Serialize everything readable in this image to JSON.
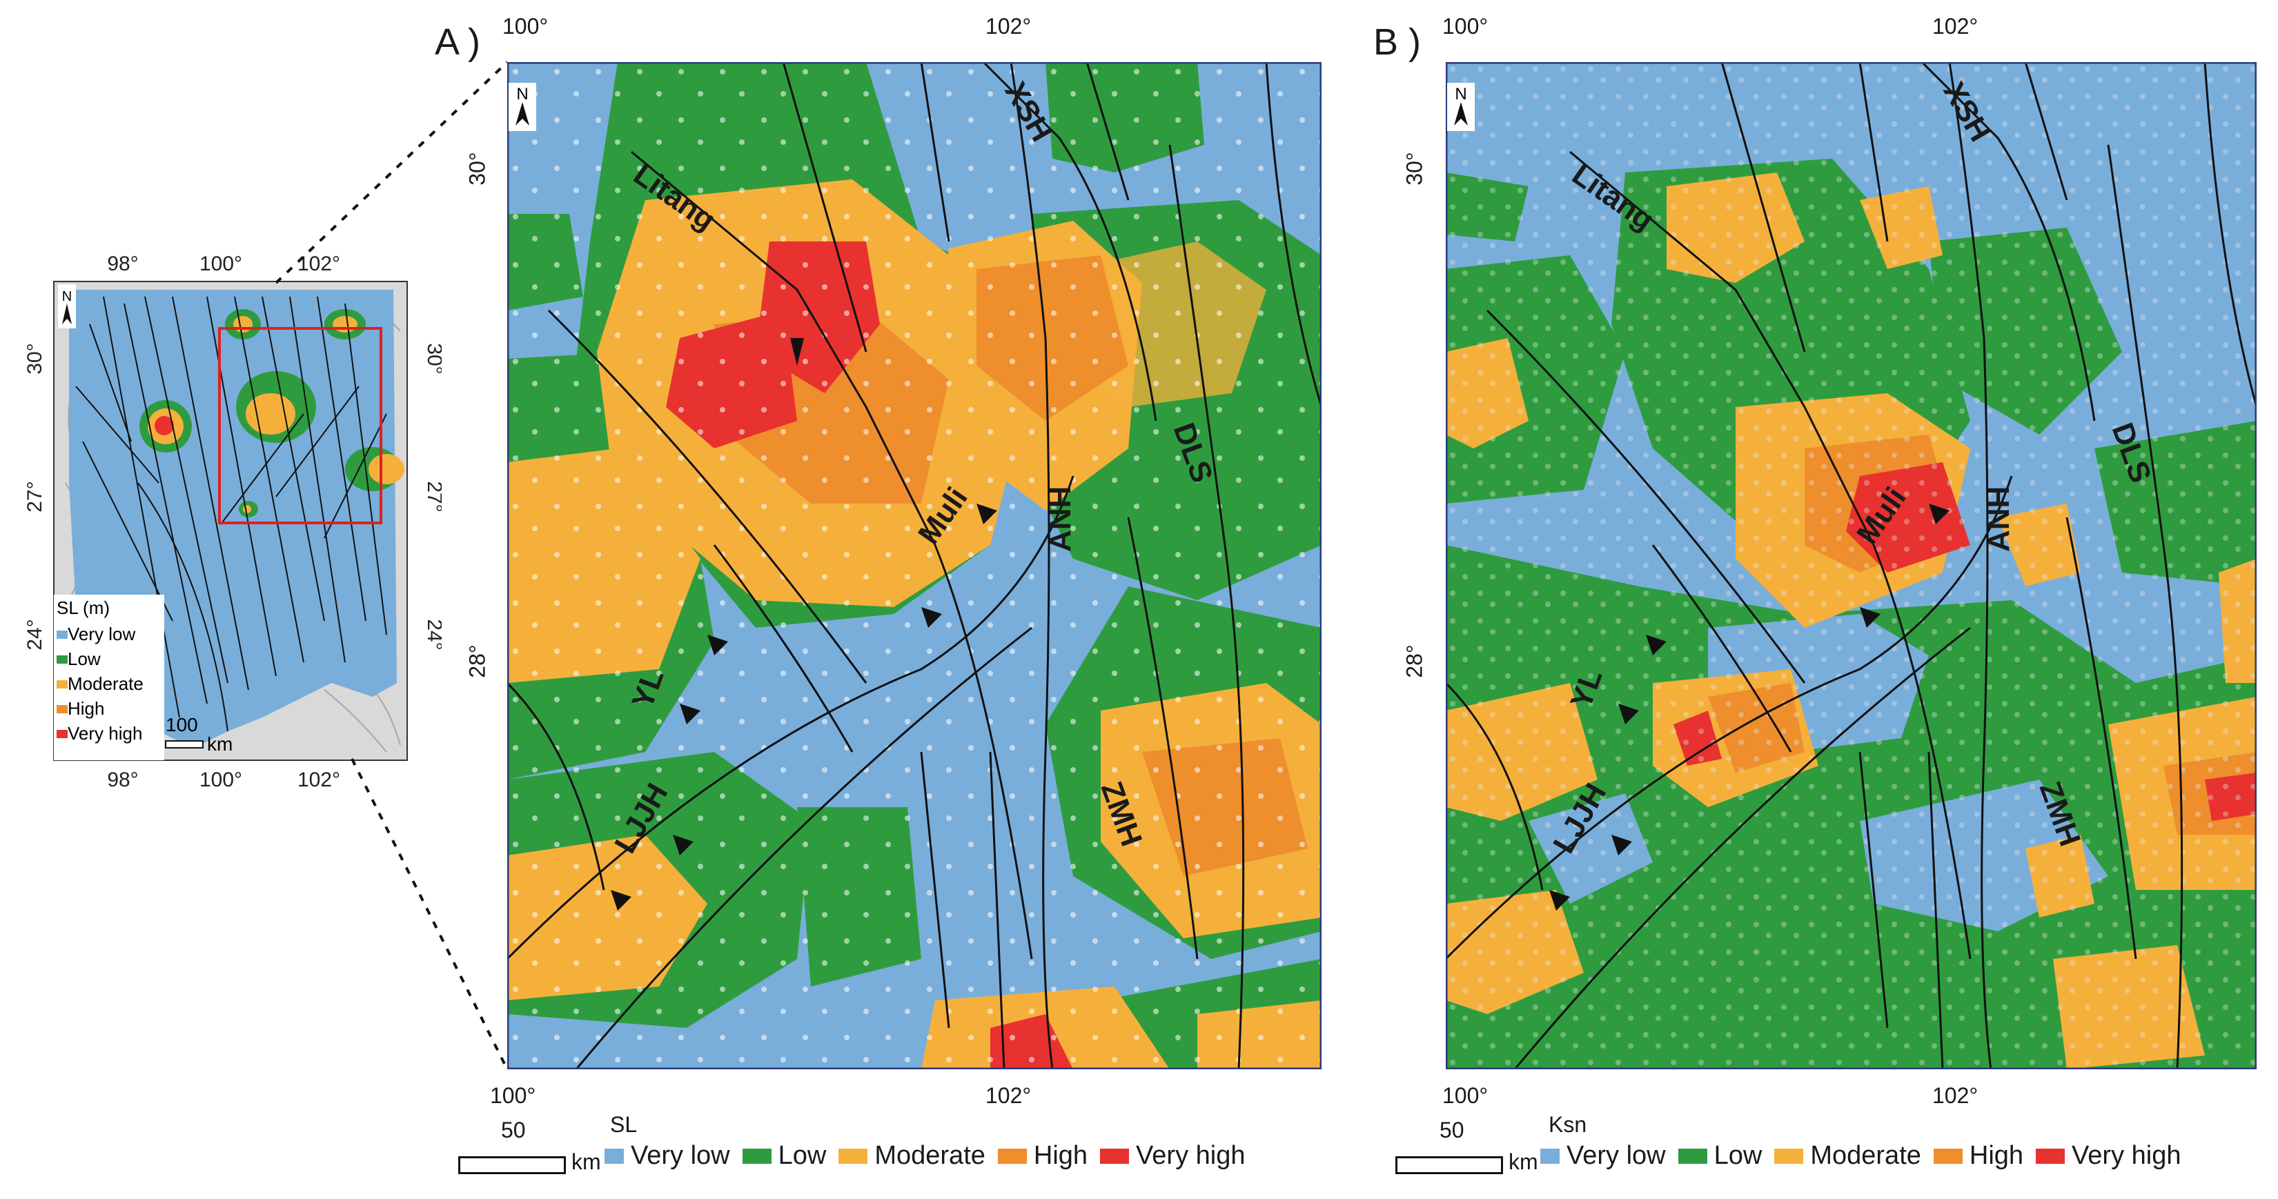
{
  "inset": {
    "top_ticks": [
      "98°",
      "100°",
      "102°"
    ],
    "bottom_ticks": [
      "98°",
      "100°",
      "102°"
    ],
    "left_ticks": [
      "30°",
      "27°",
      "24°"
    ],
    "right_ticks": [
      "30°",
      "27°",
      "24°"
    ],
    "north": "N",
    "legend_title": "SL (m)",
    "legend_items": [
      "Very low",
      "Low",
      "Moderate",
      "High",
      "Very high"
    ],
    "scale_value": "100",
    "scale_unit": "km"
  },
  "panel_a": {
    "letter": "A )",
    "top_ticks": [
      "100°",
      "102°"
    ],
    "bottom_ticks": [
      "100°",
      "102°"
    ],
    "left_ticks": [
      "30°",
      "28°"
    ],
    "north": "N",
    "faults": [
      "XSH",
      "Litang",
      "DLS",
      "ANH",
      "Muli",
      "YL",
      "LJJH",
      "ZMH"
    ],
    "scale_value": "50",
    "scale_unit": "km",
    "legend_title": "SL",
    "legend_items": [
      "Very low",
      "Low",
      "Moderate",
      "High",
      "Very high"
    ]
  },
  "panel_b": {
    "letter": "B )",
    "top_ticks": [
      "100°",
      "102°"
    ],
    "bottom_ticks": [
      "100°",
      "102°"
    ],
    "left_ticks": [
      "30°",
      "28°"
    ],
    "north": "N",
    "faults": [
      "XSH",
      "Litang",
      "DLS",
      "ANH",
      "Muli",
      "YL",
      "LJJH",
      "ZMH"
    ],
    "scale_value": "50",
    "scale_unit": "km",
    "legend_title": "Ksn",
    "legend_items": [
      "Very low",
      "Low",
      "Moderate",
      "High",
      "Very high"
    ]
  },
  "colors": {
    "very_low": "#79aedb",
    "low": "#2e9c3e",
    "moderate": "#f5b03c",
    "high": "#ee8e2c",
    "very_high": "#e8322f",
    "frame": "#2a3a7a",
    "fault": "#111111",
    "inset_box": "#e02020"
  }
}
